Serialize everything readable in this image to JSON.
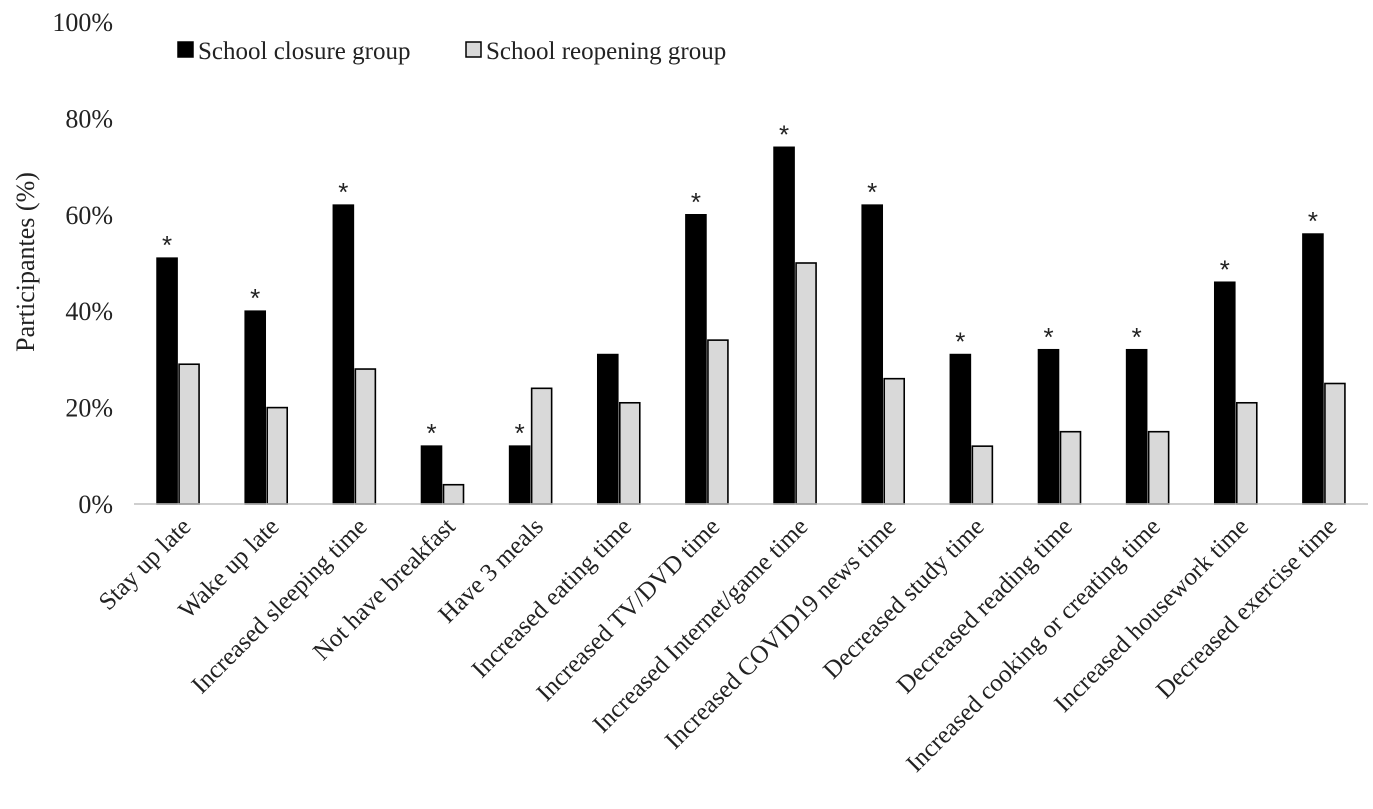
{
  "chart_data": {
    "type": "bar",
    "title": "",
    "xlabel": "",
    "ylabel": "Participantes (%)",
    "ylim": [
      0,
      100
    ],
    "yticks": [
      0,
      20,
      40,
      60,
      80,
      100
    ],
    "ytick_labels": [
      "0%",
      "20%",
      "40%",
      "60%",
      "80%",
      "100%"
    ],
    "grid": false,
    "legend_position": "top-left",
    "categories": [
      "Stay up late",
      "Wake up late",
      "Increased sleeping time",
      "Not have breakfast",
      "Have 3 meals",
      "Increased eating time",
      "Increased TV/DVD time",
      "Increased Internet/game time",
      "Increased COVID19 news time",
      "Decreased study time",
      "Decreased reading time",
      "Increased cooking or creating time",
      "Increased housework time",
      "Decreased exercise time"
    ],
    "series": [
      {
        "name": "School closure group",
        "color": "#000000",
        "values": [
          51,
          40,
          62,
          12,
          12,
          31,
          60,
          74,
          62,
          31,
          32,
          32,
          46,
          56
        ]
      },
      {
        "name": "School reopening group",
        "color": "#d9d9d9",
        "values": [
          29,
          20,
          28,
          4,
          24,
          21,
          34,
          50,
          26,
          12,
          15,
          15,
          21,
          25
        ]
      }
    ],
    "significance_marker": "*",
    "significant": [
      true,
      true,
      true,
      true,
      true,
      false,
      true,
      true,
      true,
      true,
      true,
      true,
      true,
      true
    ]
  }
}
